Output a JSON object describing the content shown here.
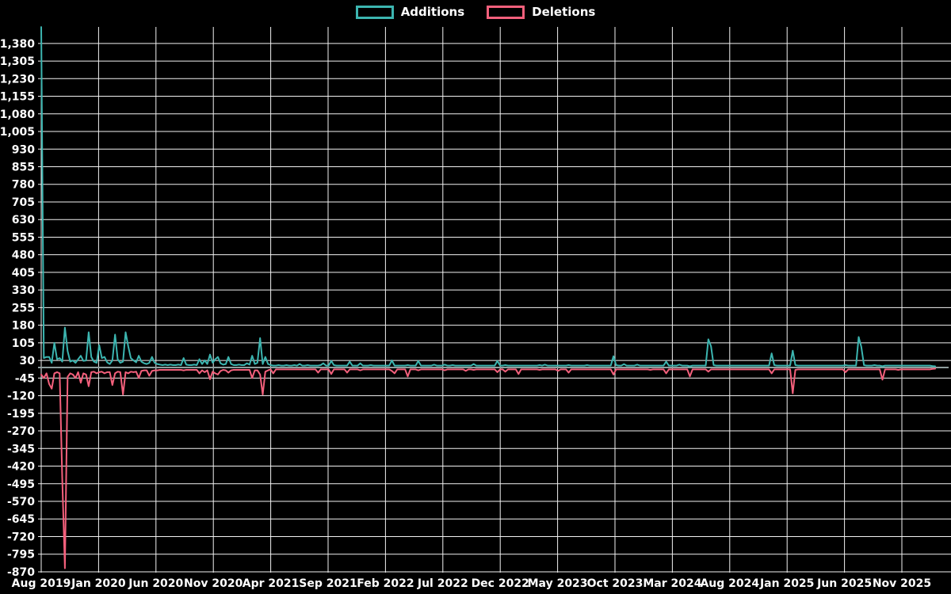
{
  "legend": {
    "additions_label": "Additions",
    "deletions_label": "Deletions"
  },
  "chart_data": {
    "type": "line",
    "title": "",
    "legend_position": "top-center",
    "grid": true,
    "style": {
      "background": "#000000",
      "grid_color": "#f2f2f2",
      "zero_line_color": "#8f9e9e",
      "text_color": "#ffffff",
      "additions_color": "#3cb5b0",
      "deletions_color": "#f4607c"
    },
    "xlabel": "",
    "ylabel": "",
    "ylim": [
      -900,
      1450
    ],
    "y_tick_step": 75,
    "y_ticks": [
      1380,
      1305,
      1230,
      1155,
      1080,
      1005,
      930,
      855,
      780,
      705,
      630,
      555,
      480,
      405,
      330,
      255,
      180,
      105,
      30,
      -45,
      -120,
      -195,
      -270,
      -345,
      -420,
      -495,
      -570,
      -645,
      -720,
      -795,
      -870
    ],
    "x_ticks": [
      "Aug 2019",
      "Jan 2020",
      "Jun 2020",
      "Nov 2020",
      "Apr 2021",
      "Sep 2021",
      "Feb 2022",
      "Jul 2022",
      "Dec 2022",
      "May 2023",
      "Oct 2023",
      "Mar 2024",
      "Aug 2024",
      "Jan 2025",
      "Jun 2025",
      "Nov 2025"
    ],
    "x_unit": "week",
    "series": [
      {
        "name": "Additions",
        "color": "#3cb5b0",
        "values": [
          1450,
          40,
          45,
          45,
          20,
          105,
          35,
          40,
          25,
          170,
          70,
          25,
          30,
          20,
          35,
          50,
          28,
          30,
          150,
          45,
          25,
          20,
          95,
          40,
          45,
          22,
          15,
          30,
          140,
          35,
          20,
          25,
          150,
          90,
          40,
          30,
          22,
          50,
          25,
          18,
          15,
          20,
          45,
          20,
          15,
          12,
          10,
          12,
          10,
          12,
          10,
          10,
          12,
          10,
          40,
          12,
          10,
          10,
          12,
          10,
          35,
          15,
          30,
          15,
          55,
          20,
          35,
          45,
          18,
          12,
          15,
          45,
          15,
          10,
          10,
          12,
          10,
          10,
          18,
          12,
          50,
          15,
          20,
          125,
          15,
          45,
          15,
          10,
          8,
          8,
          10,
          8,
          8,
          10,
          8,
          8,
          10,
          8,
          15,
          8,
          8,
          10,
          8,
          8,
          8,
          8,
          10,
          18,
          8,
          8,
          28,
          10,
          8,
          8,
          8,
          8,
          8,
          25,
          8,
          8,
          8,
          18,
          8,
          8,
          8,
          10,
          8,
          8,
          8,
          8,
          8,
          8,
          8,
          30,
          8,
          8,
          8,
          8,
          8,
          10,
          8,
          8,
          8,
          28,
          8,
          8,
          8,
          8,
          8,
          12,
          8,
          8,
          8,
          12,
          8,
          8,
          10,
          8,
          8,
          8,
          8,
          8,
          8,
          8,
          15,
          8,
          8,
          8,
          8,
          8,
          8,
          8,
          8,
          28,
          8,
          8,
          10,
          8,
          8,
          8,
          8,
          8,
          8,
          8,
          8,
          8,
          8,
          8,
          8,
          10,
          8,
          12,
          8,
          8,
          8,
          8,
          8,
          8,
          8,
          8,
          10,
          8,
          8,
          8,
          8,
          8,
          8,
          10,
          8,
          8,
          8,
          8,
          8,
          8,
          8,
          8,
          8,
          48,
          10,
          8,
          8,
          14,
          8,
          8,
          8,
          8,
          12,
          8,
          8,
          8,
          8,
          8,
          8,
          8,
          8,
          8,
          8,
          25,
          8,
          8,
          8,
          8,
          12,
          8,
          8,
          8,
          5,
          8,
          8,
          8,
          8,
          8,
          8,
          120,
          90,
          10,
          8,
          8,
          8,
          8,
          8,
          8,
          8,
          8,
          8,
          8,
          8,
          8,
          8,
          8,
          8,
          8,
          8,
          8,
          8,
          8,
          8,
          60,
          10,
          8,
          8,
          8,
          8,
          8,
          8,
          72,
          10,
          8,
          8,
          8,
          8,
          8,
          8,
          8,
          8,
          8,
          8,
          8,
          8,
          8,
          8,
          8,
          8,
          8,
          8,
          10,
          8,
          8,
          8,
          8,
          130,
          88,
          10,
          8,
          8,
          8,
          10,
          8,
          8,
          5,
          8,
          8,
          8,
          8,
          8,
          8,
          8,
          8,
          8,
          8,
          8,
          8,
          8,
          8,
          8,
          8,
          8,
          8,
          6,
          5
        ]
      },
      {
        "name": "Deletions",
        "color": "#f4607c",
        "values": [
          -30,
          -45,
          -25,
          -70,
          -90,
          -25,
          -20,
          -25,
          -480,
          -855,
          -40,
          -25,
          -30,
          -45,
          -20,
          -65,
          -25,
          -30,
          -80,
          -20,
          -18,
          -25,
          -20,
          -18,
          -25,
          -20,
          -20,
          -75,
          -25,
          -18,
          -20,
          -115,
          -20,
          -25,
          -18,
          -20,
          -18,
          -45,
          -15,
          -12,
          -12,
          -35,
          -15,
          -12,
          -12,
          -10,
          -10,
          -10,
          -10,
          -10,
          -10,
          -10,
          -10,
          -10,
          -12,
          -10,
          -10,
          -10,
          -10,
          -10,
          -25,
          -12,
          -20,
          -12,
          -50,
          -18,
          -25,
          -30,
          -15,
          -10,
          -12,
          -22,
          -12,
          -10,
          -10,
          -10,
          -10,
          -10,
          -10,
          -10,
          -45,
          -12,
          -12,
          -30,
          -115,
          -18,
          -12,
          -8,
          -25,
          -8,
          -8,
          -8,
          -8,
          -8,
          -8,
          -8,
          -8,
          -8,
          -8,
          -8,
          -8,
          -8,
          -8,
          -8,
          -8,
          -22,
          -8,
          -8,
          -8,
          -8,
          -28,
          -8,
          -8,
          -8,
          -8,
          -8,
          -22,
          -8,
          -8,
          -8,
          -8,
          -12,
          -8,
          -8,
          -8,
          -8,
          -8,
          -8,
          -8,
          -8,
          -8,
          -8,
          -8,
          -15,
          -25,
          -8,
          -8,
          -8,
          -8,
          -38,
          -8,
          -8,
          -8,
          -12,
          -8,
          -8,
          -8,
          -8,
          -8,
          -8,
          -8,
          -8,
          -8,
          -12,
          -8,
          -8,
          -8,
          -8,
          -8,
          -8,
          -8,
          -14,
          -8,
          -8,
          -10,
          -8,
          -8,
          -8,
          -8,
          -8,
          -8,
          -8,
          -8,
          -20,
          -8,
          -8,
          -18,
          -8,
          -8,
          -8,
          -8,
          -28,
          -8,
          -8,
          -8,
          -8,
          -8,
          -8,
          -8,
          -10,
          -8,
          -8,
          -8,
          -8,
          -8,
          -8,
          -14,
          -8,
          -8,
          -8,
          -22,
          -8,
          -8,
          -8,
          -8,
          -8,
          -8,
          -8,
          -8,
          -8,
          -8,
          -8,
          -8,
          -8,
          -8,
          -8,
          -8,
          -30,
          -8,
          -8,
          -8,
          -8,
          -8,
          -8,
          -8,
          -8,
          -8,
          -8,
          -8,
          -8,
          -8,
          -10,
          -8,
          -8,
          -8,
          -8,
          -8,
          -25,
          -8,
          -8,
          -8,
          -8,
          -8,
          -8,
          -8,
          -8,
          -38,
          -8,
          -8,
          -8,
          -8,
          -8,
          -8,
          -18,
          -8,
          -8,
          -8,
          -8,
          -8,
          -8,
          -8,
          -8,
          -8,
          -8,
          -8,
          -8,
          -8,
          -8,
          -8,
          -8,
          -8,
          -8,
          -8,
          -8,
          -8,
          -8,
          -8,
          -25,
          -8,
          -8,
          -8,
          -8,
          -8,
          -8,
          -8,
          -110,
          -10,
          -8,
          -8,
          -8,
          -8,
          -8,
          -8,
          -8,
          -8,
          -8,
          -8,
          -8,
          -8,
          -8,
          -8,
          -8,
          -8,
          -8,
          -8,
          -20,
          -8,
          -8,
          -8,
          -8,
          -8,
          -8,
          -8,
          -8,
          -8,
          -8,
          -8,
          -8,
          -8,
          -52,
          -8,
          -8,
          -8,
          -8,
          -8,
          -10,
          -8,
          -8,
          -8,
          -8,
          -8,
          -8,
          -8,
          -8,
          -8,
          -8,
          -8,
          -8,
          -6,
          -5
        ]
      }
    ]
  }
}
